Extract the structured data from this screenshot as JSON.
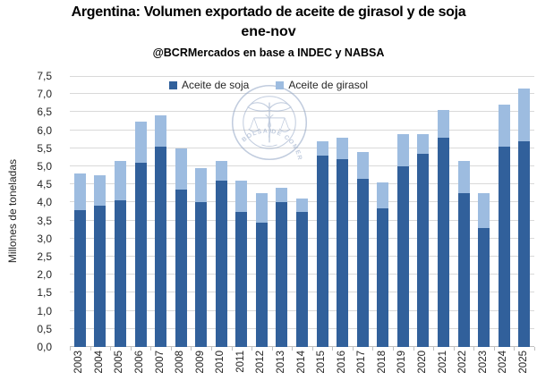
{
  "chart_data": {
    "type": "bar",
    "stacked": true,
    "title": "Argentina: Volumen exportado de aceite de girasol y de soja",
    "subtitle": "ene-nov",
    "source": "@BCRMercados en base a INDEC y NABSA",
    "ylabel": "Millones de toneladas",
    "ylim": [
      0,
      7.5
    ],
    "ytick_step": 0.5,
    "ytick_labels_top_down": [
      "7,5",
      "7,0",
      "6,5",
      "6,0",
      "5,5",
      "5,0",
      "4,5",
      "4,0",
      "3,5",
      "3,0",
      "2,5",
      "2,0",
      "1,5",
      "1,0",
      "0,5",
      "0,0"
    ],
    "categories": [
      "2003",
      "2004",
      "2005",
      "2006",
      "2007",
      "2008",
      "2009",
      "2010",
      "2011",
      "2012",
      "2013",
      "2014",
      "2015",
      "2016",
      "2017",
      "2018",
      "2019",
      "2020",
      "2021",
      "2022",
      "2023",
      "2024",
      "2025"
    ],
    "series": [
      {
        "name": "Aceite de soja",
        "color": "#31609B",
        "values": [
          3.8,
          3.9,
          4.05,
          5.1,
          5.55,
          4.35,
          4.0,
          4.6,
          3.75,
          3.45,
          4.0,
          3.75,
          5.3,
          5.2,
          4.65,
          3.85,
          5.0,
          5.35,
          5.8,
          4.25,
          3.3,
          5.55,
          5.7
        ]
      },
      {
        "name": "Aceite de girasol",
        "color": "#9DBCE0",
        "values": [
          1.0,
          0.85,
          1.1,
          1.15,
          0.85,
          1.15,
          0.95,
          0.55,
          0.85,
          0.8,
          0.4,
          0.35,
          0.4,
          0.6,
          0.75,
          0.7,
          0.9,
          0.55,
          0.75,
          0.9,
          0.95,
          1.15,
          1.45
        ]
      }
    ],
    "legend_position": "top-center",
    "grid": true,
    "gridline_color": "#D9D9D9"
  },
  "watermark": {
    "text": "BOLSA DE COMERCIO DE ROSARIO",
    "color": "#8FA3C4"
  }
}
